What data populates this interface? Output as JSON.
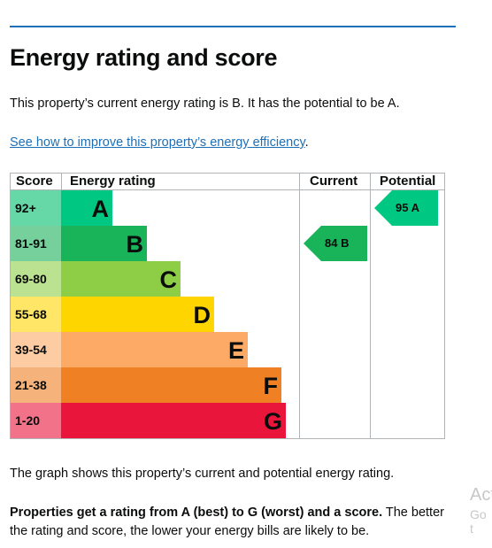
{
  "page": {
    "title": "Energy rating and score",
    "intro": "This property’s current energy rating is B. It has the potential to be A.",
    "link_text": "See how to improve this property’s energy efficiency",
    "link_suffix": ".",
    "graph_note": "The graph shows this property’s current and potential energy rating.",
    "rating_bold": "Properties get a rating from A (best) to G (worst) and a score.",
    "rating_rest": " The better the rating and score, the lower your energy bills are likely to be."
  },
  "chart": {
    "headers": {
      "score": "Score",
      "rating": "Energy rating",
      "current": "Current",
      "potential": "Potential"
    },
    "bands": [
      {
        "score": "92+",
        "letter": "A",
        "color": "#00c781",
        "score_color": "#66d8a7",
        "width_fraction": 0.23
      },
      {
        "score": "81-91",
        "letter": "B",
        "color": "#19b459",
        "score_color": "#75d09b",
        "width_fraction": 0.38
      },
      {
        "score": "69-80",
        "letter": "C",
        "color": "#8dce46",
        "score_color": "#bbe290",
        "width_fraction": 0.53
      },
      {
        "score": "55-68",
        "letter": "D",
        "color": "#ffd500",
        "score_color": "#ffe666",
        "width_fraction": 0.68
      },
      {
        "score": "39-54",
        "letter": "E",
        "color": "#fcaa65",
        "score_color": "#fdcca3",
        "width_fraction": 0.83
      },
      {
        "score": "21-38",
        "letter": "F",
        "color": "#ef8023",
        "score_color": "#f5b37b",
        "width_fraction": 0.98
      },
      {
        "score": "1-20",
        "letter": "G",
        "color": "#e9153b",
        "score_color": "#f27389",
        "width_fraction": 1.0
      }
    ],
    "current": {
      "score": "84",
      "letter": "B",
      "band_index": 1,
      "color": "#19b459"
    },
    "potential": {
      "score": "95",
      "letter": "A",
      "band_index": 0,
      "color": "#00c781"
    }
  },
  "watermark": {
    "line1": "Act",
    "line2": "Go t"
  }
}
